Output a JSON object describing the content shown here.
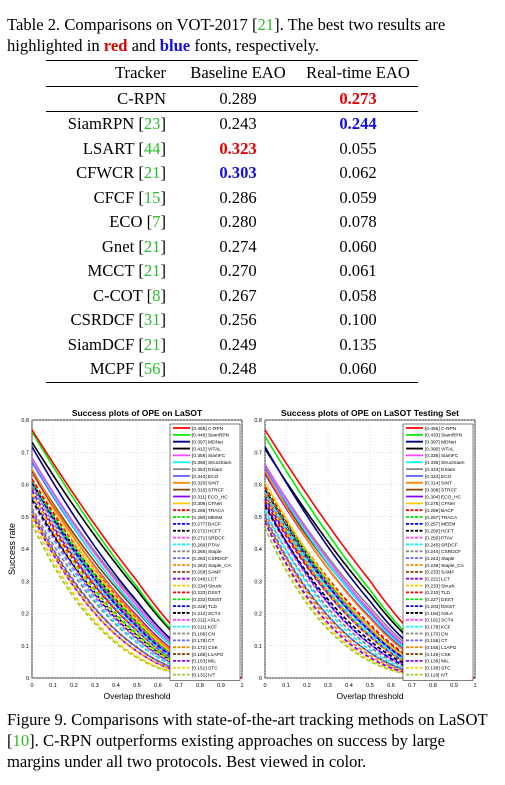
{
  "table_caption": {
    "prefix": "Table 2. Comparisons on VOT-2017 [",
    "ref": "21",
    "mid": "]. The best two results are highlighted in ",
    "red_word": "red",
    "and_word": " and ",
    "blue_word": "blue",
    "suffix": " fonts, respectively."
  },
  "table": {
    "headers": [
      "Tracker",
      "Baseline EAO",
      "Real-time EAO"
    ],
    "rows": [
      {
        "name": "C-RPN",
        "ref": "",
        "baseline": "0.289",
        "realtime": "0.273",
        "baseline_style": "",
        "realtime_style": "red"
      },
      {
        "name": "SiamRPN",
        "ref": "23",
        "baseline": "0.243",
        "realtime": "0.244",
        "baseline_style": "",
        "realtime_style": "blue"
      },
      {
        "name": "LSART",
        "ref": "44",
        "baseline": "0.323",
        "realtime": "0.055",
        "baseline_style": "red",
        "realtime_style": ""
      },
      {
        "name": "CFWCR",
        "ref": "21",
        "baseline": "0.303",
        "realtime": "0.062",
        "baseline_style": "blue",
        "realtime_style": ""
      },
      {
        "name": "CFCF",
        "ref": "15",
        "baseline": "0.286",
        "realtime": "0.059",
        "baseline_style": "",
        "realtime_style": ""
      },
      {
        "name": "ECO",
        "ref": "7",
        "baseline": "0.280",
        "realtime": "0.078",
        "baseline_style": "",
        "realtime_style": ""
      },
      {
        "name": "Gnet",
        "ref": "21",
        "baseline": "0.274",
        "realtime": "0.060",
        "baseline_style": "",
        "realtime_style": ""
      },
      {
        "name": "MCCT",
        "ref": "21",
        "baseline": "0.270",
        "realtime": "0.061",
        "baseline_style": "",
        "realtime_style": ""
      },
      {
        "name": "C-COT",
        "ref": "8",
        "baseline": "0.267",
        "realtime": "0.058",
        "baseline_style": "",
        "realtime_style": ""
      },
      {
        "name": "CSRDCF",
        "ref": "31",
        "baseline": "0.256",
        "realtime": "0.100",
        "baseline_style": "",
        "realtime_style": ""
      },
      {
        "name": "SiamDCF",
        "ref": "21",
        "baseline": "0.249",
        "realtime": "0.135",
        "baseline_style": "",
        "realtime_style": ""
      },
      {
        "name": "MCPF",
        "ref": "56",
        "baseline": "0.248",
        "realtime": "0.060",
        "baseline_style": "",
        "realtime_style": ""
      }
    ]
  },
  "figure_caption": {
    "prefix": "Figure 9. Comparisons with state-of-the-art tracking methods on LaSOT [",
    "ref": "10",
    "suffix": "]. C-RPN outperforms existing approaches on success by large margins under all two protocols. Best viewed in color."
  },
  "chart_data": [
    {
      "type": "line",
      "title": "Success plots of OPE on LaSOT",
      "xlabel": "Overlap threshold",
      "ylabel": "Success rate",
      "xlim": [
        0,
        1
      ],
      "ylim": [
        0,
        0.8
      ],
      "xticks": [
        "0",
        "0.1",
        "0.2",
        "0.3",
        "0.4",
        "0.5",
        "0.6",
        "0.7",
        "0.8",
        "0.9",
        "1"
      ],
      "yticks": [
        "0",
        "0.1",
        "0.2",
        "0.3",
        "0.4",
        "0.5",
        "0.6",
        "0.7",
        "0.8"
      ],
      "grid": true,
      "legend_position": "top-right",
      "series": [
        {
          "name": "[0.455] C-RPN",
          "auc": 0.455,
          "color": "#ff0000",
          "dashed": false
        },
        {
          "name": "[0.448] SiamRPN",
          "auc": 0.448,
          "color": "#00ee00",
          "dashed": false
        },
        {
          "name": "[0.397] MDNet",
          "auc": 0.397,
          "color": "#000088",
          "dashed": false
        },
        {
          "name": "[0.412] VITAL",
          "auc": 0.412,
          "color": "#000000",
          "dashed": false
        },
        {
          "name": "[0.358] SiamFC",
          "auc": 0.358,
          "color": "#ff44ff",
          "dashed": false
        },
        {
          "name": "[0.356] StructSiam",
          "auc": 0.356,
          "color": "#00ffff",
          "dashed": false
        },
        {
          "name": "[0.353] DSiam",
          "auc": 0.353,
          "color": "#888888",
          "dashed": false
        },
        {
          "name": "[0.343] ECO",
          "auc": 0.343,
          "color": "#6666ff",
          "dashed": false
        },
        {
          "name": "[0.320] SINT",
          "auc": 0.32,
          "color": "#ff8800",
          "dashed": false
        },
        {
          "name": "[0.315] STRCF",
          "auc": 0.315,
          "color": "#884400",
          "dashed": false
        },
        {
          "name": "[0.311] ECO_HC",
          "auc": 0.311,
          "color": "#8800ff",
          "dashed": false
        },
        {
          "name": "[0.306] CFNet",
          "auc": 0.306,
          "color": "#ffcc00",
          "dashed": false
        },
        {
          "name": "[0.285] TRACA",
          "auc": 0.285,
          "color": "#ff0000",
          "dashed": true
        },
        {
          "name": "[0.280] MEEM",
          "auc": 0.28,
          "color": "#00ee00",
          "dashed": true
        },
        {
          "name": "[0.277] BACF",
          "auc": 0.277,
          "color": "#0000ff",
          "dashed": true
        },
        {
          "name": "[0.272] HCFT",
          "auc": 0.272,
          "color": "#000000",
          "dashed": true
        },
        {
          "name": "[0.271] SRDCF",
          "auc": 0.271,
          "color": "#ff44ff",
          "dashed": true
        },
        {
          "name": "[0.269] PTAV",
          "auc": 0.269,
          "color": "#00ffff",
          "dashed": true
        },
        {
          "name": "[0.266] Staple",
          "auc": 0.266,
          "color": "#888888",
          "dashed": true
        },
        {
          "name": "[0.263] CSRDCF",
          "auc": 0.263,
          "color": "#6666ff",
          "dashed": true
        },
        {
          "name": "[0.262] Staple_CA",
          "auc": 0.262,
          "color": "#ff8800",
          "dashed": true
        },
        {
          "name": "[0.258] SAMF",
          "auc": 0.258,
          "color": "#884400",
          "dashed": true
        },
        {
          "name": "[0.246] LCT",
          "auc": 0.246,
          "color": "#8800ff",
          "dashed": true
        },
        {
          "name": "[0.234] Struck",
          "auc": 0.234,
          "color": "#ffcc00",
          "dashed": true
        },
        {
          "name": "[0.233] DSST",
          "auc": 0.233,
          "color": "#ff0000",
          "dashed": true
        },
        {
          "name": "[0.232] fDSST",
          "auc": 0.232,
          "color": "#00ee00",
          "dashed": true
        },
        {
          "name": "[0.228] TLD",
          "auc": 0.228,
          "color": "#0000ff",
          "dashed": true
        },
        {
          "name": "[0.214] SCT4",
          "auc": 0.214,
          "color": "#000000",
          "dashed": true
        },
        {
          "name": "[0.211] ASLA",
          "auc": 0.211,
          "color": "#ff44ff",
          "dashed": true
        },
        {
          "name": "[0.211] KCF",
          "auc": 0.211,
          "color": "#00ffff",
          "dashed": true
        },
        {
          "name": "[0.186] CN",
          "auc": 0.186,
          "color": "#888888",
          "dashed": true
        },
        {
          "name": "[0.178] CT",
          "auc": 0.178,
          "color": "#6666ff",
          "dashed": true
        },
        {
          "name": "[0.172] CSK",
          "auc": 0.172,
          "color": "#ff8800",
          "dashed": true
        },
        {
          "name": "[0.168] L1APG",
          "auc": 0.168,
          "color": "#884400",
          "dashed": true
        },
        {
          "name": "[0.163] MIL",
          "auc": 0.163,
          "color": "#8800ff",
          "dashed": true
        },
        {
          "name": "[0.151] STC",
          "auc": 0.151,
          "color": "#ffcc00",
          "dashed": true
        },
        {
          "name": "[0.131] IVT",
          "auc": 0.131,
          "color": "#99cc33",
          "dashed": true
        }
      ]
    },
    {
      "type": "line",
      "title": "Success plots of OPE on LaSOT Testing Set",
      "xlabel": "Overlap threshold",
      "ylabel": "",
      "xlim": [
        0,
        1
      ],
      "ylim": [
        0,
        0.8
      ],
      "xticks": [
        "0",
        "0.1",
        "0.2",
        "0.3",
        "0.4",
        "0.5",
        "0.6",
        "0.7",
        "0.8",
        "0.9",
        "1"
      ],
      "yticks": [
        "0",
        "0.1",
        "0.2",
        "0.3",
        "0.4",
        "0.5",
        "0.6",
        "0.7",
        "0.8"
      ],
      "grid": true,
      "legend_position": "top-right",
      "series": [
        {
          "name": "[0.455] C-RPN",
          "auc": 0.455,
          "color": "#ff0000",
          "dashed": false
        },
        {
          "name": "[0.433] SiamRPN",
          "auc": 0.433,
          "color": "#00ee00",
          "dashed": false
        },
        {
          "name": "[0.397] MDNet",
          "auc": 0.397,
          "color": "#000088",
          "dashed": false
        },
        {
          "name": "[0.390] VITAL",
          "auc": 0.39,
          "color": "#000000",
          "dashed": false
        },
        {
          "name": "[0.336] SiamFC",
          "auc": 0.336,
          "color": "#ff44ff",
          "dashed": false
        },
        {
          "name": "[0.335] StructSiam",
          "auc": 0.335,
          "color": "#00ffff",
          "dashed": false
        },
        {
          "name": "[0.333] DSiam",
          "auc": 0.333,
          "color": "#888888",
          "dashed": false
        },
        {
          "name": "[0.324] ECO",
          "auc": 0.324,
          "color": "#6666ff",
          "dashed": false
        },
        {
          "name": "[0.314] SINT",
          "auc": 0.314,
          "color": "#ff8800",
          "dashed": false
        },
        {
          "name": "[0.308] STRCF",
          "auc": 0.308,
          "color": "#884400",
          "dashed": false
        },
        {
          "name": "[0.304] ECO_HC",
          "auc": 0.304,
          "color": "#8800ff",
          "dashed": false
        },
        {
          "name": "[0.275] CFNet",
          "auc": 0.275,
          "color": "#ffcc00",
          "dashed": false
        },
        {
          "name": "[0.259] BACF",
          "auc": 0.259,
          "color": "#ff0000",
          "dashed": true
        },
        {
          "name": "[0.257] TRACA",
          "auc": 0.257,
          "color": "#00ee00",
          "dashed": true
        },
        {
          "name": "[0.257] MEEM",
          "auc": 0.257,
          "color": "#0000ff",
          "dashed": true
        },
        {
          "name": "[0.250] HCFT",
          "auc": 0.25,
          "color": "#000000",
          "dashed": true
        },
        {
          "name": "[0.250] PTAV",
          "auc": 0.25,
          "color": "#ff44ff",
          "dashed": true
        },
        {
          "name": "[0.245] SRDCF",
          "auc": 0.245,
          "color": "#00ffff",
          "dashed": true
        },
        {
          "name": "[0.244] CSRDCF",
          "auc": 0.244,
          "color": "#888888",
          "dashed": true
        },
        {
          "name": "[0.243] Staple",
          "auc": 0.243,
          "color": "#6666ff",
          "dashed": true
        },
        {
          "name": "[0.238] Staple_CA",
          "auc": 0.238,
          "color": "#ff8800",
          "dashed": true
        },
        {
          "name": "[0.233] SAMF",
          "auc": 0.233,
          "color": "#884400",
          "dashed": true
        },
        {
          "name": "[0.221] LCT",
          "auc": 0.221,
          "color": "#8800ff",
          "dashed": true
        },
        {
          "name": "[0.233] Struck",
          "auc": 0.233,
          "color": "#ffcc00",
          "dashed": true
        },
        {
          "name": "[0.210] TLD",
          "auc": 0.21,
          "color": "#ff0000",
          "dashed": true
        },
        {
          "name": "[0.227] DSST",
          "auc": 0.227,
          "color": "#00ee00",
          "dashed": true
        },
        {
          "name": "[0.203] fDSST",
          "auc": 0.203,
          "color": "#0000ff",
          "dashed": true
        },
        {
          "name": "[0.194] ASLA",
          "auc": 0.194,
          "color": "#000000",
          "dashed": true
        },
        {
          "name": "[0.191] SCT4",
          "auc": 0.191,
          "color": "#ff44ff",
          "dashed": true
        },
        {
          "name": "[0.178] KCF",
          "auc": 0.178,
          "color": "#00ffff",
          "dashed": true
        },
        {
          "name": "[0.170] CN",
          "auc": 0.17,
          "color": "#888888",
          "dashed": true
        },
        {
          "name": "[0.158] CT",
          "auc": 0.158,
          "color": "#6666ff",
          "dashed": true
        },
        {
          "name": "[0.155] L1APG",
          "auc": 0.155,
          "color": "#ff8800",
          "dashed": true
        },
        {
          "name": "[0.149] CSK",
          "auc": 0.149,
          "color": "#884400",
          "dashed": true
        },
        {
          "name": "[0.139] MIL",
          "auc": 0.139,
          "color": "#8800ff",
          "dashed": true
        },
        {
          "name": "[0.138] STC",
          "auc": 0.138,
          "color": "#ffcc00",
          "dashed": true
        },
        {
          "name": "[0.118] IVT",
          "auc": 0.118,
          "color": "#99cc33",
          "dashed": true
        }
      ]
    }
  ]
}
